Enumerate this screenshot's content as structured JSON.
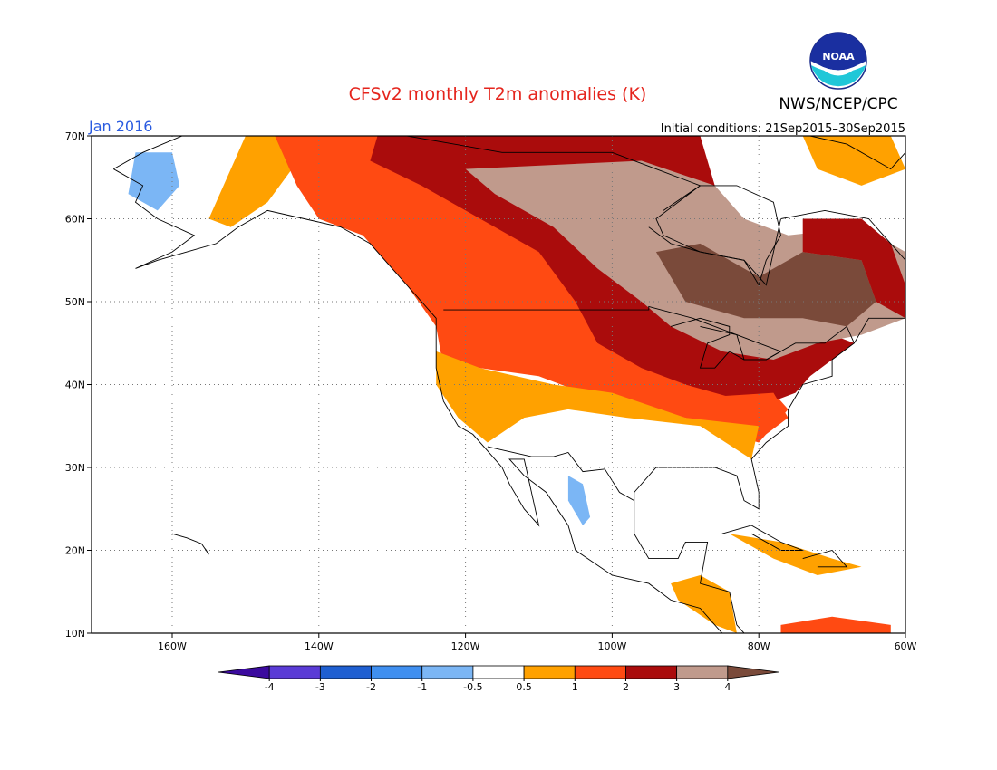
{
  "header": {
    "title": "CFSv2 monthly T2m anomalies (K)",
    "agency": "NWS/NCEP/CPC",
    "logo_text": "NOAA",
    "month": "Jan 2016",
    "init": "Initial conditions: 21Sep2015–30Sep2015"
  },
  "colors": {
    "title": "#e5241c",
    "month": "#2a5be0",
    "grid": "#777777",
    "coast": "#000000"
  },
  "map": {
    "lon_range": [
      -171,
      -60
    ],
    "lat_range": [
      10,
      70
    ],
    "lat_labels": [
      {
        "lat": 70,
        "text": "70N"
      },
      {
        "lat": 60,
        "text": "60N"
      },
      {
        "lat": 50,
        "text": "50N"
      },
      {
        "lat": 40,
        "text": "40N"
      },
      {
        "lat": 30,
        "text": "30N"
      },
      {
        "lat": 20,
        "text": "20N"
      },
      {
        "lat": 10,
        "text": "10N"
      }
    ],
    "lon_labels": [
      {
        "lon": -160,
        "text": "160W"
      },
      {
        "lon": -140,
        "text": "140W"
      },
      {
        "lon": -120,
        "text": "120W"
      },
      {
        "lon": -100,
        "text": "100W"
      },
      {
        "lon": -80,
        "text": "80W"
      },
      {
        "lon": -60,
        "text": "60W"
      }
    ],
    "grid_lats": [
      20,
      30,
      40,
      50,
      60
    ],
    "grid_lons": [
      -160,
      -140,
      -120,
      -100,
      -80
    ]
  },
  "colorbar": {
    "boundaries": [
      "-4",
      "-3",
      "-2",
      "-1",
      "-0.5",
      "0.5",
      "1",
      "2",
      "3",
      "4"
    ],
    "bins": [
      {
        "range": "< -4",
        "color": "#3b0a9e"
      },
      {
        "range": "-4 to -3",
        "color": "#5a3bd6"
      },
      {
        "range": "-3 to -2",
        "color": "#1f5fd1"
      },
      {
        "range": "-2 to -1",
        "color": "#3f8ff0"
      },
      {
        "range": "-1 to -0.5",
        "color": "#7bb6f5"
      },
      {
        "range": "-0.5 to 0.5",
        "color": "#ffffff"
      },
      {
        "range": "0.5 to 1",
        "color": "#ffa100"
      },
      {
        "range": "1 to 2",
        "color": "#ff4a12"
      },
      {
        "range": "2 to 3",
        "color": "#aa0c0c"
      },
      {
        "range": "3 to 4",
        "color": "#c09a8c"
      },
      {
        "range": "> 4",
        "color": "#7a4a3a"
      }
    ]
  },
  "anomaly_regions": [
    {
      "name": "alaska-interior-orange",
      "level": "0.5 to 1",
      "color": "#ffa100",
      "poly": [
        [
          -152,
          59
        ],
        [
          -147,
          62
        ],
        [
          -142,
          68
        ],
        [
          -142,
          70
        ],
        [
          -150,
          70
        ],
        [
          -152,
          66
        ],
        [
          -155,
          60
        ]
      ]
    },
    {
      "name": "northwest-canada-red",
      "level": "1 to 2",
      "color": "#ff4a12",
      "poly": [
        [
          -146,
          70
        ],
        [
          -125,
          70
        ],
        [
          -112,
          67
        ],
        [
          -103,
          62
        ],
        [
          -98,
          55
        ],
        [
          -92,
          50
        ],
        [
          -88,
          47
        ],
        [
          -82,
          42
        ],
        [
          -78,
          39
        ],
        [
          -76,
          37
        ],
        [
          -80,
          33
        ],
        [
          -84,
          34
        ],
        [
          -90,
          36
        ],
        [
          -95,
          37
        ],
        [
          -104,
          39
        ],
        [
          -110,
          41
        ],
        [
          -118,
          42
        ],
        [
          -123,
          42
        ],
        [
          -124,
          47
        ],
        [
          -128,
          52
        ],
        [
          -134,
          58
        ],
        [
          -140,
          60
        ],
        [
          -143,
          64
        ]
      ]
    },
    {
      "name": "canada-darkred",
      "level": "2 to 3",
      "color": "#aa0c0c",
      "poly": [
        [
          -132,
          70
        ],
        [
          -88,
          70
        ],
        [
          -86,
          64
        ],
        [
          -90,
          58
        ],
        [
          -84,
          55
        ],
        [
          -78,
          50
        ],
        [
          -70,
          46
        ],
        [
          -67,
          45
        ],
        [
          -73,
          41
        ],
        [
          -75,
          39
        ],
        [
          -78,
          38
        ],
        [
          -82,
          38
        ],
        [
          -90,
          40
        ],
        [
          -96,
          42
        ],
        [
          -102,
          45
        ],
        [
          -105,
          50
        ],
        [
          -110,
          56
        ],
        [
          -118,
          60
        ],
        [
          -126,
          64
        ],
        [
          -133,
          67
        ]
      ]
    },
    {
      "name": "canada-tan",
      "level": "3 to 4",
      "color": "#c09a8c",
      "poly": [
        [
          -120,
          66
        ],
        [
          -96,
          67
        ],
        [
          -86,
          64
        ],
        [
          -82,
          60
        ],
        [
          -76,
          58
        ],
        [
          -66,
          59
        ],
        [
          -60,
          56
        ],
        [
          -60,
          48
        ],
        [
          -66,
          46
        ],
        [
          -72,
          45
        ],
        [
          -78,
          43
        ],
        [
          -85,
          44
        ],
        [
          -92,
          47
        ],
        [
          -96,
          50
        ],
        [
          -102,
          54
        ],
        [
          -108,
          59
        ],
        [
          -116,
          63
        ]
      ]
    },
    {
      "name": "quebec-brown",
      "level": "> 4",
      "color": "#7a4a3a",
      "poly": [
        [
          -94,
          56
        ],
        [
          -88,
          57
        ],
        [
          -80,
          53
        ],
        [
          -74,
          56
        ],
        [
          -66,
          55
        ],
        [
          -64,
          50
        ],
        [
          -68,
          47
        ],
        [
          -74,
          48
        ],
        [
          -82,
          48
        ],
        [
          -90,
          50
        ]
      ]
    },
    {
      "name": "labrador-darkred",
      "level": "2 to 3",
      "color": "#aa0c0c",
      "poly": [
        [
          -74,
          60
        ],
        [
          -66,
          60
        ],
        [
          -62,
          57
        ],
        [
          -60,
          52
        ],
        [
          -60,
          48
        ],
        [
          -64,
          50
        ],
        [
          -66,
          55
        ],
        [
          -74,
          56
        ]
      ]
    },
    {
      "name": "southeast-red",
      "level": "1 to 2",
      "color": "#ff4a12",
      "poly": [
        [
          -96,
          38
        ],
        [
          -78,
          39
        ],
        [
          -76,
          36
        ],
        [
          -79,
          34
        ],
        [
          -84,
          34
        ],
        [
          -90,
          36
        ]
      ]
    },
    {
      "name": "southwest-orange",
      "level": "0.5 to 1",
      "color": "#ffa100",
      "poly": [
        [
          -124,
          44
        ],
        [
          -118,
          42
        ],
        [
          -108,
          40
        ],
        [
          -100,
          39
        ],
        [
          -90,
          36
        ],
        [
          -80,
          35
        ],
        [
          -81,
          31
        ],
        [
          -88,
          35
        ],
        [
          -98,
          36
        ],
        [
          -106,
          37
        ],
        [
          -112,
          36
        ],
        [
          -117,
          33
        ],
        [
          -121,
          36
        ],
        [
          -124,
          40
        ]
      ]
    },
    {
      "name": "mexico-blue",
      "level": "-1 to -0.5",
      "color": "#7bb6f5",
      "poly": [
        [
          -106,
          29
        ],
        [
          -104,
          28
        ],
        [
          -103,
          24
        ],
        [
          -104,
          23
        ],
        [
          -106,
          26
        ]
      ]
    },
    {
      "name": "alaska-blue",
      "level": "-1 to -0.5",
      "color": "#7bb6f5",
      "poly": [
        [
          -165,
          68
        ],
        [
          -160,
          68
        ],
        [
          -159,
          64
        ],
        [
          -162,
          61
        ],
        [
          -166,
          63
        ]
      ]
    },
    {
      "name": "caribbean-orange",
      "level": "0.5 to 1",
      "color": "#ffa100",
      "poly": [
        [
          -84,
          22
        ],
        [
          -77,
          21
        ],
        [
          -70,
          19
        ],
        [
          -66,
          18
        ],
        [
          -72,
          17
        ],
        [
          -78,
          19
        ]
      ]
    },
    {
      "name": "central-america-orange",
      "level": "0.5 to 1",
      "color": "#ffa100",
      "poly": [
        [
          -92,
          16
        ],
        [
          -88,
          17
        ],
        [
          -84,
          15
        ],
        [
          -83,
          10
        ],
        [
          -86,
          11
        ],
        [
          -91,
          14
        ]
      ]
    },
    {
      "name": "south-america-red",
      "level": "1 to 2",
      "color": "#ff4a12",
      "poly": [
        [
          -77,
          11
        ],
        [
          -70,
          12
        ],
        [
          -62,
          11
        ],
        [
          -62,
          10
        ],
        [
          -77,
          10
        ]
      ]
    },
    {
      "name": "greenland-orange",
      "level": "0.5 to 1",
      "color": "#ffa100",
      "poly": [
        [
          -74,
          70
        ],
        [
          -62,
          70
        ],
        [
          -60,
          66
        ],
        [
          -66,
          64
        ],
        [
          -72,
          66
        ]
      ]
    }
  ],
  "coastlines": [
    {
      "name": "north-america-coast",
      "pts": [
        [
          -168,
          66
        ],
        [
          -164,
          68
        ],
        [
          -156,
          71
        ],
        [
          -141,
          70
        ],
        [
          -128,
          70
        ],
        [
          -115,
          68
        ],
        [
          -100,
          68
        ],
        [
          -94,
          66
        ],
        [
          -88,
          64
        ],
        [
          -94,
          60
        ],
        [
          -93,
          58
        ],
        [
          -88,
          56
        ],
        [
          -82,
          55
        ],
        [
          -79,
          52
        ],
        [
          -78,
          56
        ],
        [
          -77,
          60
        ],
        [
          -71,
          61
        ],
        [
          -65,
          60
        ],
        [
          -61,
          56
        ],
        [
          -57,
          52
        ],
        [
          -60,
          48
        ],
        [
          -65,
          48
        ],
        [
          -67,
          45
        ],
        [
          -70,
          43
        ],
        [
          -70,
          41
        ],
        [
          -74,
          40
        ],
        [
          -76,
          37
        ],
        [
          -76,
          35
        ],
        [
          -79,
          33
        ],
        [
          -81,
          31
        ],
        [
          -80,
          27
        ],
        [
          -80,
          25
        ],
        [
          -82,
          26
        ],
        [
          -83,
          29
        ],
        [
          -86,
          30
        ],
        [
          -89,
          30
        ],
        [
          -94,
          30
        ],
        [
          -97,
          27
        ],
        [
          -97,
          22
        ],
        [
          -95,
          19
        ],
        [
          -91,
          19
        ],
        [
          -90,
          21
        ],
        [
          -87,
          21
        ],
        [
          -88,
          16
        ],
        [
          -84,
          15
        ],
        [
          -83,
          11
        ],
        [
          -81,
          9
        ],
        [
          -78,
          9
        ],
        [
          -77,
          8
        ],
        [
          -79,
          7
        ],
        [
          -83,
          8
        ],
        [
          -86,
          11
        ],
        [
          -88,
          13
        ],
        [
          -92,
          14
        ],
        [
          -95,
          16
        ],
        [
          -100,
          17
        ],
        [
          -105,
          20
        ],
        [
          -106,
          23
        ],
        [
          -109,
          27
        ],
        [
          -112,
          29
        ],
        [
          -114,
          31
        ],
        [
          -112,
          31
        ],
        [
          -110,
          23
        ],
        [
          -112,
          25
        ],
        [
          -114,
          28
        ],
        [
          -115,
          30
        ],
        [
          -117,
          32
        ],
        [
          -119,
          34
        ],
        [
          -121,
          35
        ],
        [
          -123,
          38
        ],
        [
          -124,
          42
        ],
        [
          -124,
          46
        ],
        [
          -124,
          48
        ],
        [
          -126,
          50
        ],
        [
          -130,
          54
        ],
        [
          -133,
          57
        ],
        [
          -137,
          59
        ],
        [
          -142,
          60
        ],
        [
          -147,
          61
        ],
        [
          -151,
          59
        ],
        [
          -154,
          57
        ],
        [
          -158,
          56
        ],
        [
          -162,
          55
        ],
        [
          -165,
          54
        ],
        [
          -160,
          56
        ],
        [
          -157,
          58
        ],
        [
          -162,
          60
        ],
        [
          -165,
          62
        ],
        [
          -164,
          64
        ],
        [
          -168,
          66
        ]
      ]
    },
    {
      "name": "hudson-bay-coast",
      "pts": [
        [
          -95,
          59
        ],
        [
          -92,
          57
        ],
        [
          -88,
          56
        ],
        [
          -82,
          55
        ],
        [
          -80,
          52
        ],
        [
          -79,
          55
        ],
        [
          -77,
          58
        ],
        [
          -78,
          62
        ],
        [
          -83,
          64
        ],
        [
          -88,
          64
        ],
        [
          -93,
          61
        ]
      ]
    },
    {
      "name": "great-lakes",
      "pts": [
        [
          -92,
          47
        ],
        [
          -88,
          48
        ],
        [
          -84,
          47
        ],
        [
          -84,
          46
        ],
        [
          -87,
          45
        ],
        [
          -88,
          42
        ],
        [
          -86,
          42
        ],
        [
          -84,
          44
        ],
        [
          -82,
          43
        ],
        [
          -79,
          43
        ],
        [
          -77,
          44
        ],
        [
          -80,
          45
        ],
        [
          -83,
          46
        ],
        [
          -88,
          47
        ]
      ]
    },
    {
      "name": "cuba",
      "pts": [
        [
          -85,
          22
        ],
        [
          -81,
          23
        ],
        [
          -77,
          21
        ],
        [
          -74,
          20
        ],
        [
          -77,
          20
        ],
        [
          -81,
          22
        ]
      ]
    },
    {
      "name": "hispaniola",
      "pts": [
        [
          -74,
          19
        ],
        [
          -70,
          20
        ],
        [
          -68,
          18
        ],
        [
          -72,
          18
        ]
      ]
    },
    {
      "name": "greenland-coast",
      "pts": [
        [
          -73,
          70
        ],
        [
          -68,
          69
        ],
        [
          -62,
          66
        ],
        [
          -60,
          68
        ]
      ]
    },
    {
      "name": "state-borders-us-canada",
      "pts": [
        [
          -123,
          49
        ],
        [
          -95,
          49
        ],
        [
          -95,
          49.4
        ],
        [
          -89,
          48
        ],
        [
          -83,
          46
        ],
        [
          -82,
          43
        ],
        [
          -79,
          43
        ],
        [
          -75,
          45
        ],
        [
          -71,
          45
        ],
        [
          -68,
          47
        ],
        [
          -67,
          45
        ]
      ]
    },
    {
      "name": "mexico-border",
      "pts": [
        [
          -117,
          32.5
        ],
        [
          -111,
          31.3
        ],
        [
          -108,
          31.3
        ],
        [
          -106,
          31.8
        ],
        [
          -104,
          29.5
        ],
        [
          -101,
          29.8
        ],
        [
          -99,
          27
        ],
        [
          -97,
          26
        ]
      ]
    },
    {
      "name": "hawaii",
      "pts": [
        [
          -160,
          22
        ],
        [
          -158,
          21.5
        ],
        [
          -156,
          20.8
        ],
        [
          -155,
          19.5
        ],
        [
          -155.5,
          20.2
        ]
      ]
    }
  ]
}
